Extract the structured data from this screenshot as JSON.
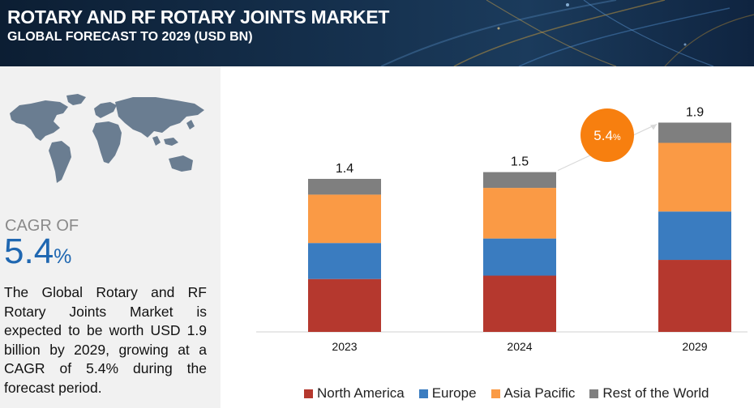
{
  "header": {
    "title": "ROTARY AND RF ROTARY JOINTS MARKET",
    "subtitle": "GLOBAL FORECAST TO 2029 (USD BN)"
  },
  "sidebar": {
    "cagr_label": "CAGR OF",
    "cagr_value": "5.4",
    "cagr_unit": "%",
    "description": "The Global Rotary and RF Rotary Joints Market is expected to be worth USD 1.9 billion by 2029, growing at a CAGR of 5.4% during the forecast period."
  },
  "chart_data": {
    "type": "bar",
    "stacked": true,
    "categories": [
      "2023",
      "2024",
      "2029"
    ],
    "totals": [
      "1.4",
      "1.5",
      "1.9"
    ],
    "series": [
      {
        "name": "North America",
        "color": "#b5382e",
        "values": [
          0.47,
          0.5,
          0.64
        ]
      },
      {
        "name": "Europe",
        "color": "#3a7cc0",
        "values": [
          0.32,
          0.33,
          0.43
        ]
      },
      {
        "name": "Asia Pacific",
        "color": "#fa9a45",
        "values": [
          0.43,
          0.45,
          0.61
        ]
      },
      {
        "name": "Rest of the World",
        "color": "#7f7f7f",
        "values": [
          0.14,
          0.14,
          0.18
        ]
      }
    ],
    "ylim": [
      0,
      2.0
    ],
    "grid": false,
    "cagr_badge": {
      "value": "5.4",
      "unit": "%",
      "color": "#f77f0f"
    },
    "legend_position": "bottom"
  }
}
